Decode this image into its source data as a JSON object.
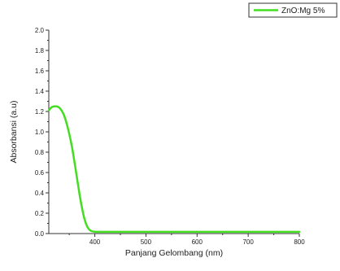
{
  "chart_data": {
    "type": "line",
    "title": "",
    "xlabel": "Panjang Gelombang (nm)",
    "ylabel": "Absorbansi (a.u)",
    "xlim": [
      310,
      800
    ],
    "ylim": [
      0.0,
      2.0
    ],
    "x_ticks": [
      400,
      500,
      600,
      700,
      800
    ],
    "x_tick_labels": [
      "400",
      "500",
      "600",
      "700",
      "800"
    ],
    "y_ticks": [
      0.0,
      0.2,
      0.4,
      0.6,
      0.8,
      1.0,
      1.2,
      1.4,
      1.6,
      1.8,
      2.0
    ],
    "y_tick_labels": [
      "0.0",
      "0.2",
      "0.4",
      "0.6",
      "0.8",
      "1.0",
      "1.2",
      "1.4",
      "1.6",
      "1.8",
      "2.0"
    ],
    "grid": false,
    "legend_position": "top-right",
    "series": [
      {
        "name": "ZnO:Mg 5%",
        "color": "#44dd22",
        "x": [
          310,
          315,
          320,
          325,
          330,
          335,
          340,
          345,
          350,
          355,
          360,
          365,
          370,
          375,
          380,
          385,
          390,
          395,
          400,
          405,
          410,
          420,
          450,
          500,
          600,
          700,
          800
        ],
        "y": [
          1.21,
          1.24,
          1.25,
          1.25,
          1.24,
          1.21,
          1.16,
          1.08,
          0.98,
          0.86,
          0.71,
          0.55,
          0.39,
          0.25,
          0.14,
          0.07,
          0.035,
          0.022,
          0.018,
          0.017,
          0.017,
          0.017,
          0.017,
          0.017,
          0.017,
          0.017,
          0.017
        ]
      }
    ]
  }
}
